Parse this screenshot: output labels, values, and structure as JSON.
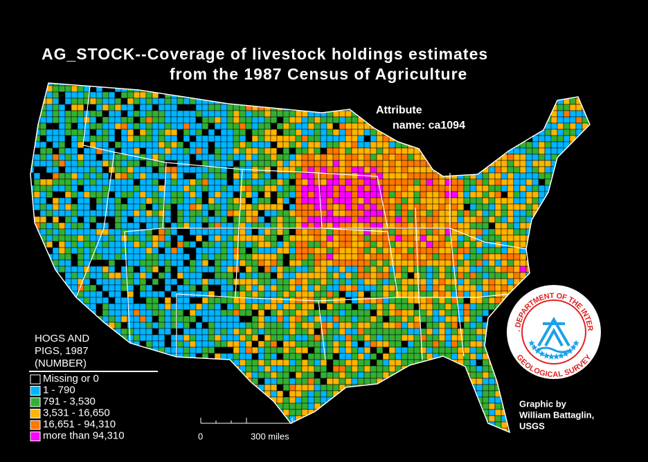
{
  "title": [
    "AG_STOCK--Coverage of livestock holdings estimates",
    "from the 1987 Census of Agriculture"
  ],
  "attribute": [
    "Attribute",
    "name:  ca1094"
  ],
  "legend": {
    "title": [
      "HOGS AND",
      "PIGS, 1987",
      "(NUMBER)"
    ],
    "items": [
      {
        "label": "Missing or 0",
        "color": "#000000"
      },
      {
        "label": "1  -  790",
        "color": "#00b4ff"
      },
      {
        "label": "791  -  3,530",
        "color": "#33b033"
      },
      {
        "label": "3,531  -  16,650",
        "color": "#ffb400"
      },
      {
        "label": "16,651  -  94,310",
        "color": "#ff7800"
      },
      {
        "label": "more than  94,310",
        "color": "#ff00ff"
      }
    ]
  },
  "scale_bar": {
    "labels": [
      "0",
      "300  miles"
    ]
  },
  "seal": {
    "top": "U.S. DEPARTMENT OF THE INTERIOR",
    "bottom": "GEOLOGICAL SURVEY"
  },
  "credit": [
    "Graphic  by",
    "William  Battaglin,",
    "USGS"
  ]
}
